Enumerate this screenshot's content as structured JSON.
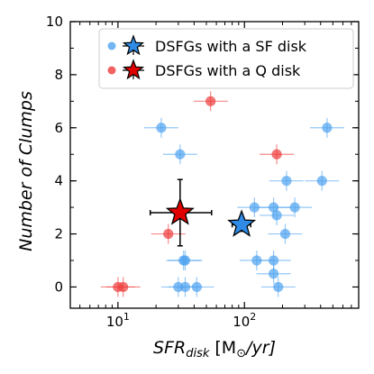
{
  "chart_data": {
    "type": "scatter",
    "x_scale": "log",
    "xlim": [
      4.2,
      800
    ],
    "ylim": [
      -0.8,
      10
    ],
    "y_ticks": [
      0,
      2,
      4,
      6,
      8,
      10
    ],
    "x_ticks": [
      {
        "value": 10,
        "base": "10",
        "exp": "1"
      },
      {
        "value": 100,
        "base": "10",
        "exp": "2"
      }
    ],
    "xlabel": {
      "main": "SFR",
      "sub": "disk",
      "unit_open": "[M",
      "unit_sym": "⊙",
      "unit_close": "/yr]"
    },
    "ylabel": "Number of Clumps",
    "legend": {
      "position": "top-right",
      "entries": [
        {
          "label": "DSFGs with a SF disk",
          "color": "#4fa3f0"
        },
        {
          "label": "DSFGs with a Q disk",
          "color": "#ee3b3b"
        }
      ]
    },
    "series": [
      {
        "name": "DSFGs with a SF disk",
        "color": "#4fa3f0",
        "points": [
          {
            "x": 22,
            "y": 6
          },
          {
            "x": 31,
            "y": 5
          },
          {
            "x": 450,
            "y": 6
          },
          {
            "x": 120,
            "y": 3
          },
          {
            "x": 170,
            "y": 3
          },
          {
            "x": 215,
            "y": 4
          },
          {
            "x": 180,
            "y": 2.7
          },
          {
            "x": 250,
            "y": 3
          },
          {
            "x": 410,
            "y": 4
          },
          {
            "x": 210,
            "y": 2
          },
          {
            "x": 125,
            "y": 1
          },
          {
            "x": 170,
            "y": 1
          },
          {
            "x": 33,
            "y": 1
          },
          {
            "x": 34,
            "y": 1
          },
          {
            "x": 170,
            "y": 0.5
          },
          {
            "x": 30,
            "y": 0
          },
          {
            "x": 34,
            "y": 0
          },
          {
            "x": 42,
            "y": 0
          },
          {
            "x": 185,
            "y": 0
          }
        ],
        "mean": {
          "x": 95,
          "y": 2.35,
          "xerr": [
            80,
            112
          ],
          "yerr": [
            2.1,
            2.6
          ]
        }
      },
      {
        "name": "DSFGs with a Q disk",
        "color": "#ee3b3b",
        "points": [
          {
            "x": 54,
            "y": 7
          },
          {
            "x": 180,
            "y": 5
          },
          {
            "x": 25,
            "y": 2
          },
          {
            "x": 10,
            "y": 0
          },
          {
            "x": 11,
            "y": 0
          }
        ],
        "mean": {
          "x": 31,
          "y": 2.8,
          "xerr": [
            18,
            55
          ],
          "yerr": [
            1.55,
            4.05
          ]
        }
      }
    ]
  }
}
